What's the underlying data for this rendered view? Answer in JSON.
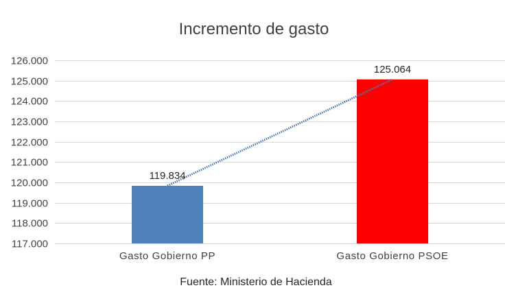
{
  "chart_data": {
    "type": "bar",
    "title": "Incremento de gasto",
    "categories": [
      "Gasto Gobierno PP",
      "Gasto Gobierno PSOE"
    ],
    "values": [
      119834,
      125064
    ],
    "data_labels": [
      "119.834",
      "125.064"
    ],
    "bar_colors": [
      "#4f81bd",
      "#ff0000"
    ],
    "ylim": [
      117000,
      126000
    ],
    "yticks": [
      117000,
      118000,
      119000,
      120000,
      121000,
      122000,
      123000,
      124000,
      125000,
      126000
    ],
    "ytick_labels": [
      "117.000",
      "118.000",
      "119.000",
      "120.000",
      "121.000",
      "122.000",
      "123.000",
      "124.000",
      "125.000",
      "126.000"
    ],
    "grid": true,
    "trendline": {
      "type": "linear",
      "style": "dotted",
      "color": "#4a78b0"
    },
    "xlabel": "",
    "ylabel": "",
    "legend": "none",
    "source": "Fuente: Ministerio de Hacienda"
  }
}
